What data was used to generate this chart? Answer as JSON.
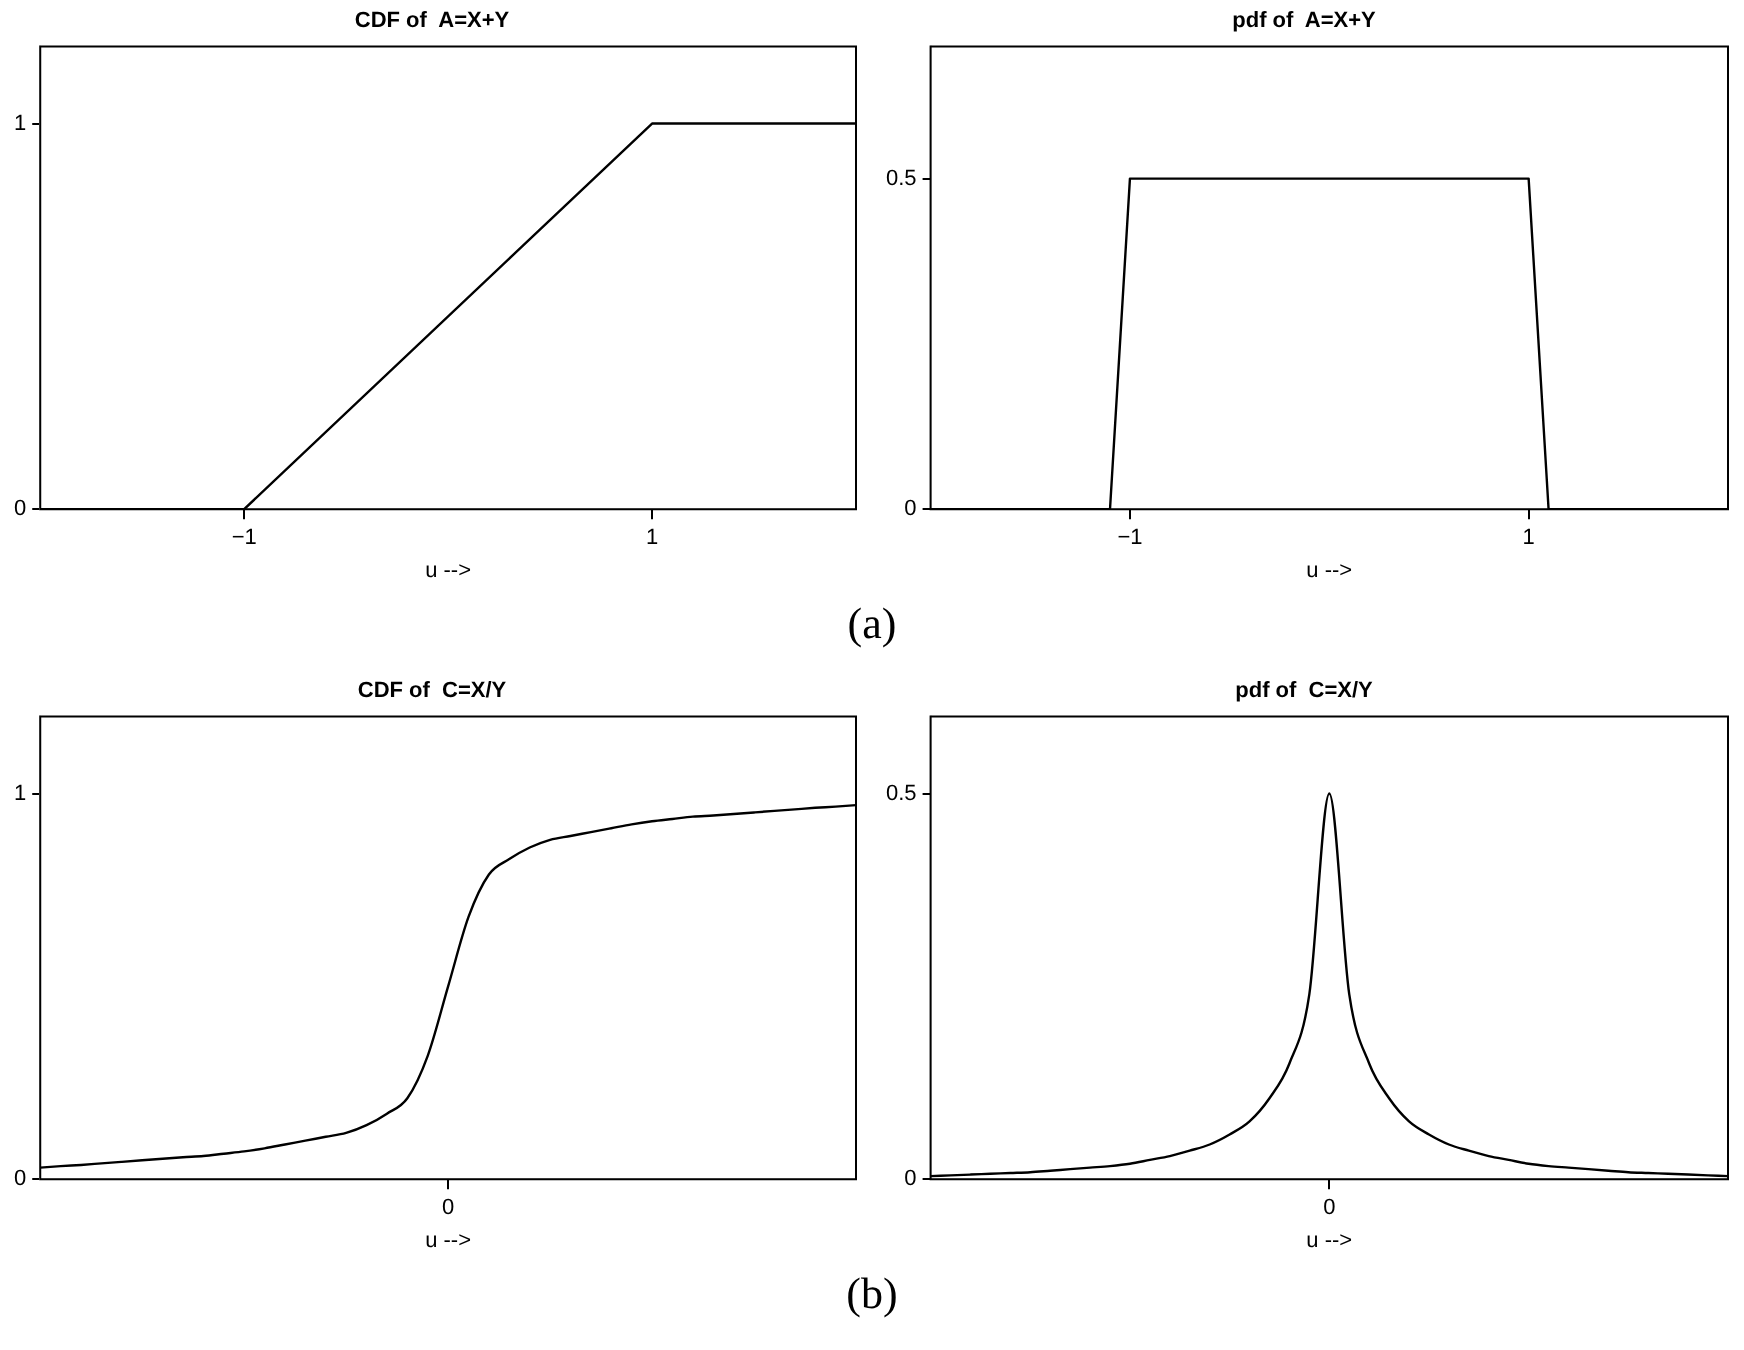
{
  "chart_data": [
    {
      "type": "line",
      "title": "CDF of  A=X+Y",
      "xlabel": "u -->",
      "x": [
        -2,
        -1,
        1,
        2
      ],
      "xlim": [
        -2,
        2
      ],
      "xticks": [
        {
          "value": -1,
          "label": "−1"
        },
        1
      ],
      "ylim": [
        0,
        1.2
      ],
      "yticks": [
        0,
        1
      ],
      "grid": false,
      "legend": false,
      "marker": "none",
      "series": [
        {
          "color": "#000000",
          "values": [
            0,
            0,
            1,
            1
          ]
        }
      ],
      "annotations": [
        "(a)"
      ]
    },
    {
      "type": "line",
      "title": "pdf of  A=X+Y",
      "xlabel": "u -->",
      "x": [
        -2,
        -1.1,
        -1,
        1,
        1.1,
        2
      ],
      "xlim": [
        -2,
        2
      ],
      "xticks": [
        {
          "value": -1,
          "label": "−1"
        },
        1
      ],
      "ylim": [
        0,
        0.7
      ],
      "yticks": [
        0,
        0.5
      ],
      "grid": false,
      "legend": false,
      "marker": "none",
      "series": [
        {
          "color": "#000000",
          "values": [
            0,
            0,
            0.5,
            0.5,
            0,
            0
          ]
        }
      ]
    },
    {
      "type": "line",
      "title": "CDF of  C=X/Y",
      "xlabel": "u -->",
      "categories": [
        null,
        null,
        null,
        null,
        null,
        null,
        null,
        null,
        null,
        null,
        null,
        null,
        null,
        null,
        null,
        null,
        null,
        null,
        null,
        null,
        "0",
        null,
        null,
        null,
        null,
        null,
        null,
        null,
        null,
        null,
        null,
        null,
        null,
        null,
        null,
        null,
        null,
        null,
        null,
        null,
        null
      ],
      "ylim": [
        0,
        1.2
      ],
      "yticks": [
        0,
        1
      ],
      "grid": false,
      "legend": false,
      "marker": "none",
      "series": [
        {
          "color": "#000000",
          "values": [
            0.03,
            0.034,
            0.037,
            0.041,
            0.045,
            0.049,
            0.053,
            0.057,
            0.06,
            0.066,
            0.072,
            0.08,
            0.09,
            0.1,
            0.11,
            0.12,
            0.14,
            0.17,
            0.21,
            0.32,
            0.5,
            0.68,
            0.79,
            0.83,
            0.86,
            0.88,
            0.89,
            0.9,
            0.91,
            0.92,
            0.928,
            0.934,
            0.94,
            0.943,
            0.947,
            0.951,
            0.955,
            0.959,
            0.963,
            0.966,
            0.97
          ]
        }
      ],
      "annotations": [
        "(b)"
      ]
    },
    {
      "type": "line",
      "title": "pdf of  C=X/Y",
      "xlabel": "u -->",
      "categories": [
        null,
        null,
        null,
        null,
        null,
        null,
        null,
        null,
        null,
        null,
        null,
        null,
        null,
        null,
        null,
        null,
        null,
        null,
        null,
        null,
        "0",
        null,
        null,
        null,
        null,
        null,
        null,
        null,
        null,
        null,
        null,
        null,
        null,
        null,
        null,
        null,
        null,
        null,
        null,
        null,
        null
      ],
      "ylim": [
        0,
        0.6
      ],
      "yticks": [
        0,
        0.5
      ],
      "grid": false,
      "legend": false,
      "marker": "none",
      "series": [
        {
          "color": "#000000",
          "values": [
            0.004,
            0.005,
            0.006,
            0.007,
            0.008,
            0.009,
            0.011,
            0.013,
            0.015,
            0.017,
            0.02,
            0.025,
            0.03,
            0.037,
            0.045,
            0.058,
            0.075,
            0.105,
            0.15,
            0.24,
            0.5,
            0.24,
            0.15,
            0.105,
            0.075,
            0.058,
            0.045,
            0.037,
            0.03,
            0.025,
            0.02,
            0.017,
            0.015,
            0.013,
            0.011,
            0.009,
            0.008,
            0.007,
            0.006,
            0.005,
            0.004
          ]
        }
      ]
    }
  ]
}
